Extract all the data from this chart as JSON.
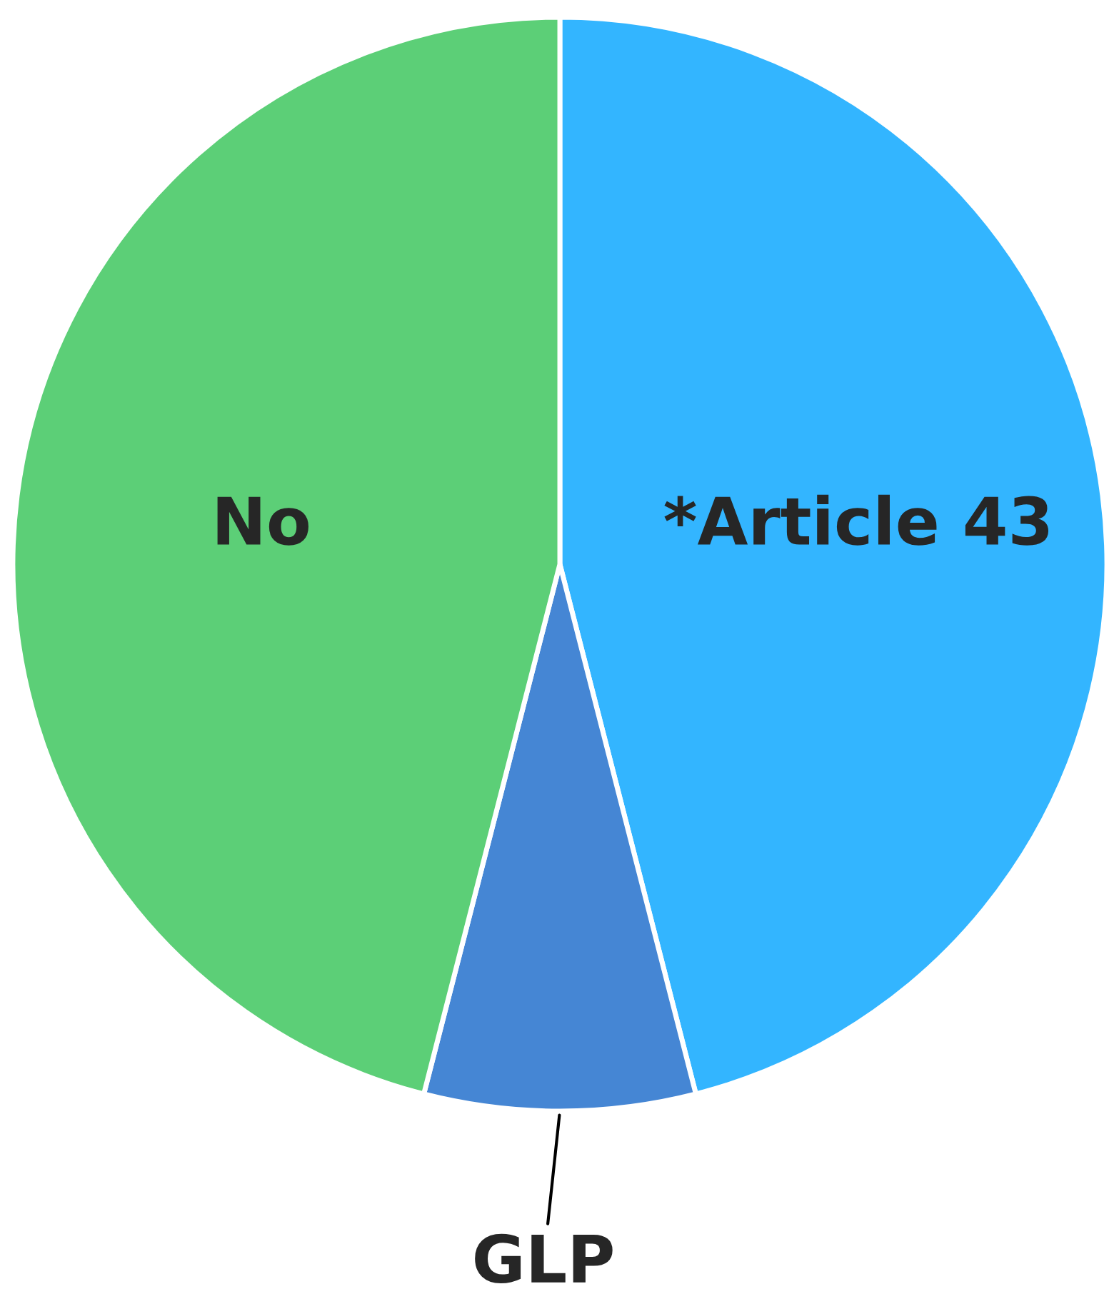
{
  "chart_data": {
    "type": "pie",
    "categories": [
      "*Article 43",
      "GLP",
      "No"
    ],
    "values": [
      46,
      8,
      46
    ],
    "colors": [
      "#33b5ff",
      "#4586d4",
      "#5ccf77"
    ]
  }
}
